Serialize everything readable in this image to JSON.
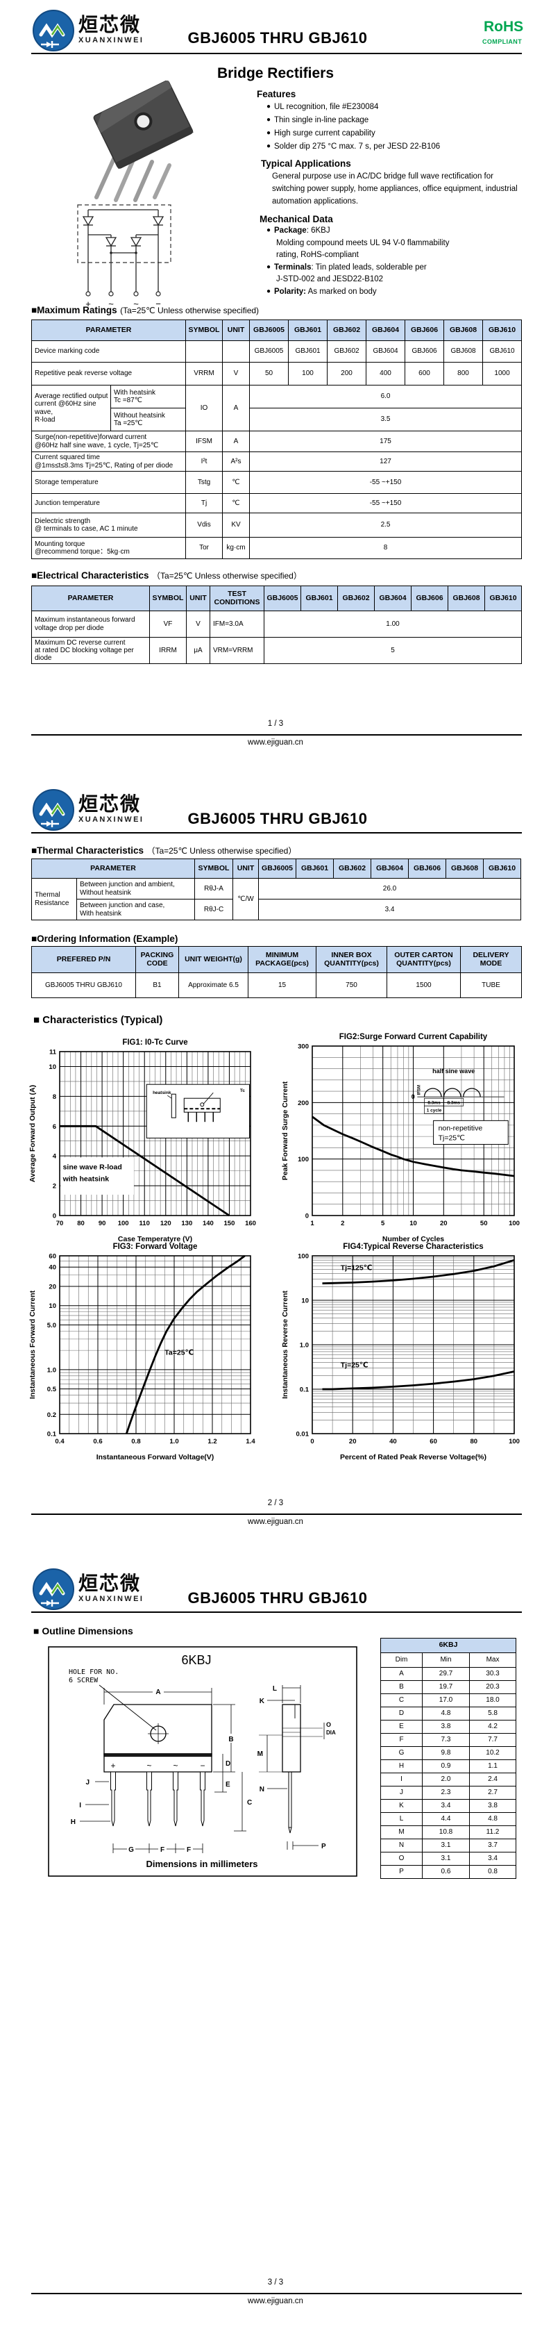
{
  "brand": {
    "cn": "烜芯微",
    "en": "XUANXINWEI",
    "monogram": "XXW"
  },
  "doc": {
    "title": "GBJ6005 THRU GBJ610",
    "product": "Bridge Rectifiers",
    "rohs": "RoHS",
    "rohs_sub": "COMPLIANT",
    "site": "www.ejiguan.cn",
    "page_1": "1 / 3",
    "page_2": "2 / 3",
    "page_3": "3 / 3"
  },
  "parts": [
    "GBJ6005",
    "GBJ601",
    "GBJ602",
    "GBJ604",
    "GBJ606",
    "GBJ608",
    "GBJ610"
  ],
  "features": {
    "title": "Features",
    "items": [
      "UL recognition, file #E230084",
      "Thin single in-line package",
      "High surge current capability",
      "Solder dip 275 °C max. 7 s, per JESD 22-B106"
    ]
  },
  "applications": {
    "title": "Typical Applications",
    "text": "General purpose use in AC/DC bridge full wave rectification for switching power supply, home appliances, office equipment, industrial automation applications."
  },
  "mechanical": {
    "title": "Mechanical Data",
    "items": [
      {
        "label": "Package",
        "rest": ": 6KBJ",
        "cont": [
          "Molding compound meets UL 94 V-0 flammability",
          "rating, RoHS-compliant"
        ]
      },
      {
        "label": "Terminals",
        "rest": ": Tin plated leads, solderable per",
        "cont": [
          "J-STD-002 and JESD22-B102"
        ]
      },
      {
        "label": "Polarity:",
        "rest": " As marked on body",
        "cont": []
      }
    ]
  },
  "schematic": {
    "terminals": [
      "+",
      "~",
      "~",
      "−"
    ]
  },
  "max_ratings": {
    "title": "■Maximum Ratings",
    "condition": "(Ta=25℃ Unless otherwise specified)",
    "headers": {
      "param": "PARAMETER",
      "symbol": "SYMBOL",
      "unit": "UNIT"
    },
    "marking": {
      "param": "Device marking code",
      "values": [
        "GBJ6005",
        "GBJ601",
        "GBJ602",
        "GBJ604",
        "GBJ606",
        "GBJ608",
        "GBJ610"
      ]
    },
    "vrrm": {
      "param": "Repetitive peak reverse voltage",
      "symbol": "VRRM",
      "unit": "V",
      "values": [
        "50",
        "100",
        "200",
        "400",
        "600",
        "800",
        "1000"
      ]
    },
    "io": {
      "param": "Average rectified output\ncurrent  @60Hz sine wave,\nR-load",
      "sub1": "With heatsink\nTc =87℃",
      "sub2": "Without heatsink\nTa =25℃",
      "symbol": "IO",
      "unit": "A",
      "value1": "6.0",
      "value2": "3.5"
    },
    "ifsm": {
      "param": "Surge(non-repetitive)forward current\n@60Hz half sine wave, 1 cycle, Tj=25℃",
      "symbol": "IFSM",
      "unit": "A",
      "value": "175"
    },
    "i2t": {
      "param": "Current squared time\n@1ms≤t≤8.3ms Tj=25℃, Rating of per diode",
      "symbol": "I²t",
      "unit": "A²s",
      "value": "127"
    },
    "tstg": {
      "param": "Storage temperature",
      "symbol": "Tstg",
      "unit": "℃",
      "value": "-55 ~+150"
    },
    "tj": {
      "param": "Junction temperature",
      "symbol": "Tj",
      "unit": "℃",
      "value": "-55 ~+150"
    },
    "vdis": {
      "param": "Dielectric strength\n@ terminals to case, AC 1 minute",
      "symbol": "Vdis",
      "unit": "KV",
      "value": "2.5"
    },
    "tor": {
      "param": "Mounting torque\n@recommend torque：5kg·cm",
      "symbol": "Tor",
      "unit": "kg·cm",
      "value": "8"
    }
  },
  "elec": {
    "title": "■Electrical Characteristics",
    "condition": "（Ta=25℃ Unless otherwise specified）",
    "headers": {
      "param": "PARAMETER",
      "symbol": "SYMBOL",
      "unit": "UNIT",
      "test": "TEST\nCONDITIONS"
    },
    "vf": {
      "param": "Maximum instantaneous forward\nvoltage drop per diode",
      "symbol": "VF",
      "unit": "V",
      "cond": "IFM=3.0A",
      "value": "1.00"
    },
    "irrm": {
      "param": "Maximum DC reverse current\nat rated DC blocking voltage per diode",
      "symbol": "IRRM",
      "unit": "μA",
      "cond": "VRM=VRRM",
      "value": "5"
    }
  },
  "thermal": {
    "title": "■Thermal Characteristics",
    "condition": "（Ta=25℃ Unless otherwise specified）",
    "headers": {
      "param": "PARAMETER",
      "symbol": "SYMBOL",
      "unit": "UNIT"
    },
    "group": "Thermal\nResistance",
    "row1": {
      "desc": "Between junction and ambient,\nWithout heatsink",
      "symbol": "RθJ-A",
      "value": "26.0"
    },
    "row2": {
      "desc": "Between junction and case,\nWith heatsink",
      "symbol": "RθJ-C",
      "value": "3.4"
    },
    "unit": "℃/W"
  },
  "ordering": {
    "title": "■Ordering Information (Example)",
    "headers": [
      "PREFERED P/N",
      "PACKING\nCODE",
      "UNIT WEIGHT(g)",
      "MINIMUM\nPACKAGE(pcs)",
      "INNER BOX\nQUANTITY(pcs)",
      "OUTER CARTON\nQUANTITY(pcs)",
      "DELIVERY MODE"
    ],
    "row": [
      "GBJ6005 THRU GBJ610",
      "B1",
      "Approximate  6.5",
      "15",
      "750",
      "1500",
      "TUBE"
    ]
  },
  "characteristics_title": "■ Characteristics (Typical)",
  "chart_data": [
    {
      "id": "fig1",
      "type": "line",
      "title": "FIG1: I0-Tc  Curve",
      "xlabel": "Case Temperatyre (V)",
      "ylabel": "Average Forward Output (A)",
      "xscale": "linear",
      "yscale": "linear",
      "xlim": [
        70,
        160
      ],
      "ylim": [
        0,
        11
      ],
      "xticks": [
        "70",
        "80",
        "90",
        "100",
        "110",
        "120",
        "130",
        "140",
        "150",
        "160"
      ],
      "yticks": [
        "0",
        "2",
        "4",
        "6",
        "8",
        "10",
        "11"
      ],
      "x_minor": 2.5,
      "y_minor": 1,
      "series": [
        {
          "name": "io-derating",
          "points": [
            [
              70,
              6
            ],
            [
              87,
              6
            ],
            [
              150,
              0
            ]
          ]
        }
      ],
      "ann": [
        {
          "t": "sine wave R-load",
          "x": 71.5,
          "y": 3.1,
          "mono": 1
        },
        {
          "t": "with heatsink",
          "x": 71.5,
          "y": 2.3,
          "mono": 1
        }
      ],
      "ann_box": [
        70.4,
        1.4,
        105,
        3.9
      ],
      "inset": {
        "type": "package",
        "labels": [
          "heatsink",
          "Tc"
        ]
      }
    },
    {
      "id": "fig2",
      "type": "line",
      "title": "FIG2:Surge Forward Current Capability",
      "xlabel": "Number of Cycles",
      "ylabel": "Peak Forward Surge Current",
      "xscale": "log",
      "yscale": "linear",
      "xlim": [
        1,
        100
      ],
      "ylim": [
        0,
        300
      ],
      "xticks": [
        "1",
        "2",
        "5",
        "10",
        "20",
        "50",
        "100"
      ],
      "yticks": [
        "0",
        "100",
        "200",
        "300"
      ],
      "y_minor": 20,
      "series": [
        {
          "name": "ifsm",
          "points": [
            [
              1,
              175
            ],
            [
              1.3,
              160
            ],
            [
              1.7,
              150
            ],
            [
              2,
              144
            ],
            [
              2.5,
              137
            ],
            [
              3,
              131
            ],
            [
              4,
              121
            ],
            [
              5,
              114
            ],
            [
              6,
              108
            ],
            [
              7,
              104
            ],
            [
              8,
              100
            ],
            [
              10,
              95
            ],
            [
              13,
              91
            ],
            [
              16,
              88
            ],
            [
              20,
              85
            ],
            [
              25,
              82
            ],
            [
              30,
              80
            ],
            [
              40,
              78
            ],
            [
              50,
              76
            ],
            [
              65,
              74
            ],
            [
              80,
              72
            ],
            [
              100,
              70
            ]
          ]
        }
      ],
      "inset": {
        "type": "halfsine",
        "labels": [
          "half sine wave",
          "IFSM",
          "8.3ms",
          "8.3ms",
          "1 cycle",
          "0",
          "non-repetitive",
          "Tj=25℃"
        ]
      }
    },
    {
      "id": "fig3",
      "type": "line",
      "title": "FIG3: Forward Voltage",
      "xlabel": "Instantaneous Forward Voltage(V)",
      "ylabel": "Instantaneous Forward Current",
      "xscale": "linear",
      "yscale": "log",
      "xlim": [
        0.4,
        1.4
      ],
      "ylim": [
        0.1,
        60
      ],
      "xticks": [
        "0.4",
        "0.6",
        "0.8",
        "1.0",
        "1.2",
        "1.4"
      ],
      "yticks": [
        "0.1",
        "0.2",
        "0.5",
        "1.0",
        "5.0",
        "10",
        "20",
        "40",
        "60"
      ],
      "x_minor": 0.05,
      "series": [
        {
          "name": "vf",
          "points": [
            [
              0.75,
              0.1
            ],
            [
              0.77,
              0.15
            ],
            [
              0.79,
              0.22
            ],
            [
              0.81,
              0.32
            ],
            [
              0.84,
              0.55
            ],
            [
              0.87,
              0.95
            ],
            [
              0.9,
              1.6
            ],
            [
              0.93,
              2.6
            ],
            [
              0.96,
              4.0
            ],
            [
              1.0,
              6.3
            ],
            [
              1.04,
              9
            ],
            [
              1.08,
              12.5
            ],
            [
              1.12,
              16.5
            ],
            [
              1.17,
              22
            ],
            [
              1.22,
              29
            ],
            [
              1.28,
              39
            ],
            [
              1.33,
              49
            ],
            [
              1.37,
              60
            ]
          ]
        }
      ],
      "ann": [
        {
          "t": "Ta=25℃",
          "x": 0.95,
          "y": 1.7
        }
      ]
    },
    {
      "id": "fig4",
      "type": "line",
      "title": "FIG4:Typical Reverse Characteristics",
      "xlabel": "Percent of Rated Peak Reverse Voltage(%)",
      "ylabel": "Instantaneous Reverse Current",
      "xscale": "linear",
      "yscale": "log",
      "xlim": [
        0,
        100
      ],
      "ylim": [
        0.01,
        100
      ],
      "xticks": [
        "0",
        "20",
        "40",
        "60",
        "80",
        "100"
      ],
      "yticks": [
        "0.01",
        "0.1",
        "1.0",
        "10",
        "100"
      ],
      "x_minor": 10,
      "series": [
        {
          "name": "tj125",
          "label": "Tj=125℃",
          "label_at": [
            14,
            48
          ],
          "points": [
            [
              5,
              24
            ],
            [
              10,
              24.3
            ],
            [
              20,
              25
            ],
            [
              30,
              26.3
            ],
            [
              40,
              28
            ],
            [
              50,
              30.5
            ],
            [
              60,
              34
            ],
            [
              70,
              39
            ],
            [
              80,
              46
            ],
            [
              90,
              58
            ],
            [
              100,
              80
            ]
          ]
        },
        {
          "name": "tj25",
          "label": "Tj=25℃",
          "label_at": [
            14,
            0.31
          ],
          "points": [
            [
              5,
              0.1
            ],
            [
              10,
              0.1
            ],
            [
              20,
              0.104
            ],
            [
              30,
              0.108
            ],
            [
              40,
              0.114
            ],
            [
              50,
              0.122
            ],
            [
              60,
              0.133
            ],
            [
              70,
              0.148
            ],
            [
              80,
              0.168
            ],
            [
              90,
              0.2
            ],
            [
              100,
              0.25
            ]
          ]
        }
      ]
    }
  ],
  "outline": {
    "title": "■ Outline Dimensions",
    "package": "6KBJ",
    "hole_note_1": "HOLE FOR NO.",
    "hole_note_2": "6 SCREW",
    "units_note": "Dimensions in millimeters",
    "dia_label": "DIA",
    "pin_marks": [
      "+",
      "~",
      "~",
      "−"
    ],
    "dim_letters": [
      "A",
      "B",
      "C",
      "D",
      "E",
      "F",
      "G",
      "H",
      "I",
      "J",
      "K",
      "L",
      "M",
      "N",
      "O",
      "P"
    ],
    "table": {
      "title": "6KBJ",
      "headers": [
        "Dim",
        "Min",
        "Max"
      ],
      "rows": [
        [
          "A",
          "29.7",
          "30.3"
        ],
        [
          "B",
          "19.7",
          "20.3"
        ],
        [
          "C",
          "17.0",
          "18.0"
        ],
        [
          "D",
          "4.8",
          "5.8"
        ],
        [
          "E",
          "3.8",
          "4.2"
        ],
        [
          "F",
          "7.3",
          "7.7"
        ],
        [
          "G",
          "9.8",
          "10.2"
        ],
        [
          "H",
          "0.9",
          "1.1"
        ],
        [
          "I",
          "2.0",
          "2.4"
        ],
        [
          "J",
          "2.3",
          "2.7"
        ],
        [
          "K",
          "3.4",
          "3.8"
        ],
        [
          "L",
          "4.4",
          "4.8"
        ],
        [
          "M",
          "10.8",
          "11.2"
        ],
        [
          "N",
          "3.1",
          "3.7"
        ],
        [
          "O",
          "3.1",
          "3.4"
        ],
        [
          "P",
          "0.6",
          "0.8"
        ]
      ]
    }
  }
}
